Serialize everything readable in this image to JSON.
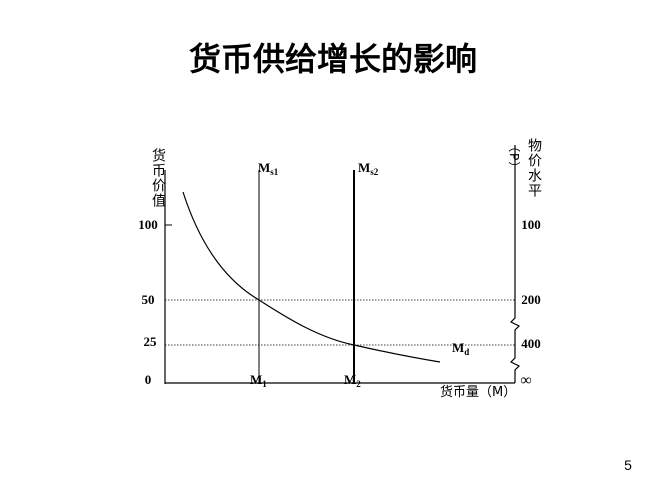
{
  "title": "货币供给增长的影响",
  "left_axis": {
    "label": "货币价值",
    "ticks": [
      "100",
      "50",
      "25",
      "0"
    ]
  },
  "right_axis": {
    "label": "物价水平",
    "unit": "（P）",
    "ticks": [
      "100",
      "200",
      "400",
      "∞"
    ]
  },
  "x_axis": {
    "label": "货币量（M）"
  },
  "supply_lines": [
    {
      "label": "M",
      "sub": "s1"
    },
    {
      "label": "M",
      "sub": "s2"
    }
  ],
  "quantities": [
    {
      "label": "M",
      "sub": "1"
    },
    {
      "label": "M",
      "sub": "2"
    }
  ],
  "demand_curve": {
    "label": "M",
    "sub": "d"
  },
  "page_number": "5"
}
